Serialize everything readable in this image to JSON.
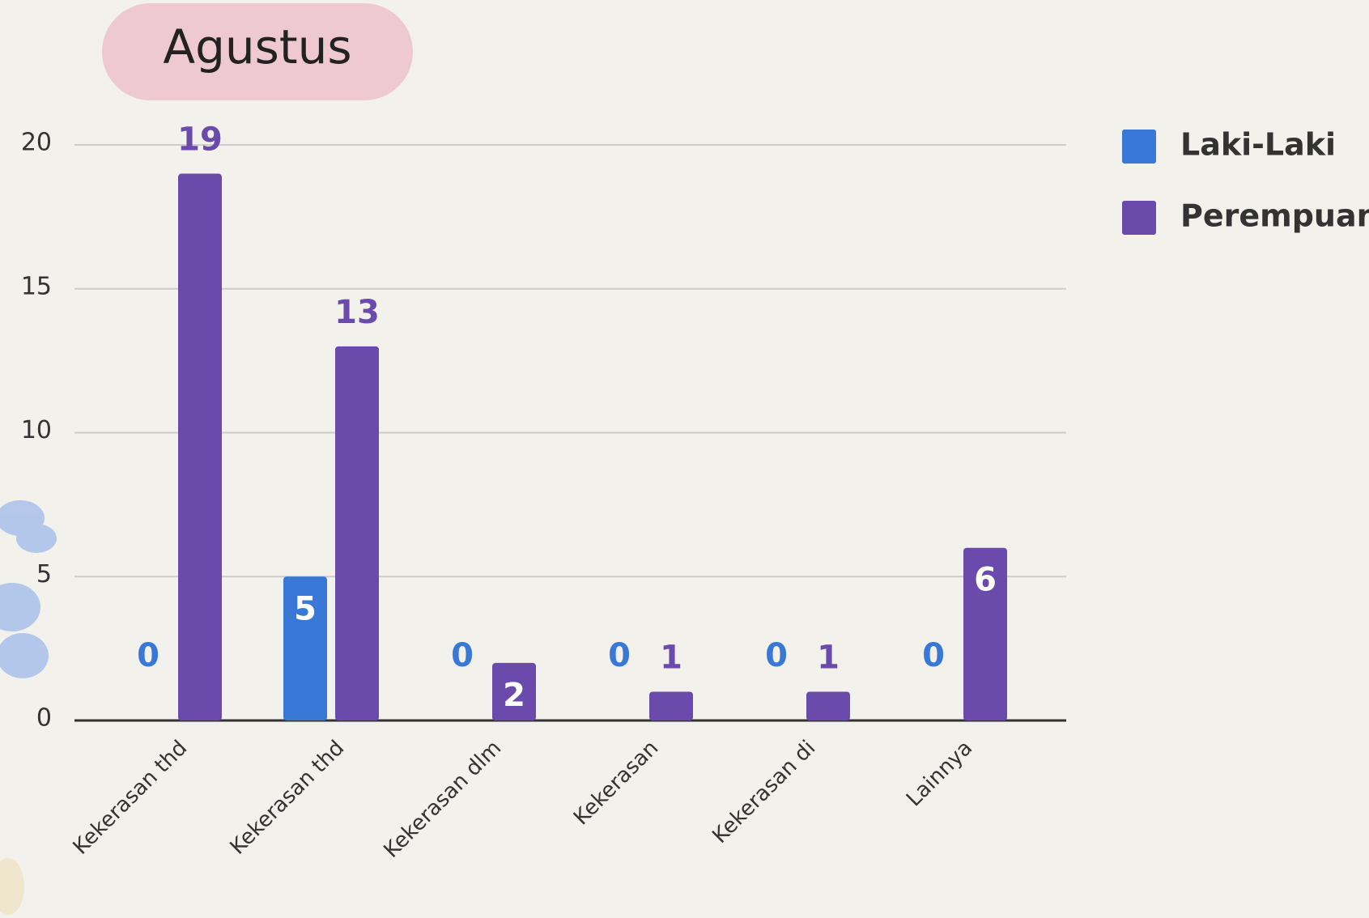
{
  "chart_data": {
    "type": "bar",
    "title": "Agustus",
    "categories": [
      "Kekerasan thd",
      "Kekerasan thd",
      "Kekerasan dlm",
      "Kekerasan",
      "Kekerasan di",
      "Lainnya"
    ],
    "series": [
      {
        "name": "Laki-Laki",
        "color": "#3a78d8",
        "values": [
          0,
          5,
          0,
          0,
          0,
          0
        ]
      },
      {
        "name": "Perempuan",
        "color": "#6a4aaa",
        "values": [
          19,
          13,
          2,
          1,
          1,
          6
        ]
      }
    ],
    "ylim": [
      0,
      20
    ],
    "yticks": [
      0,
      5,
      10,
      15,
      20
    ],
    "grid": true,
    "legend": "right"
  }
}
